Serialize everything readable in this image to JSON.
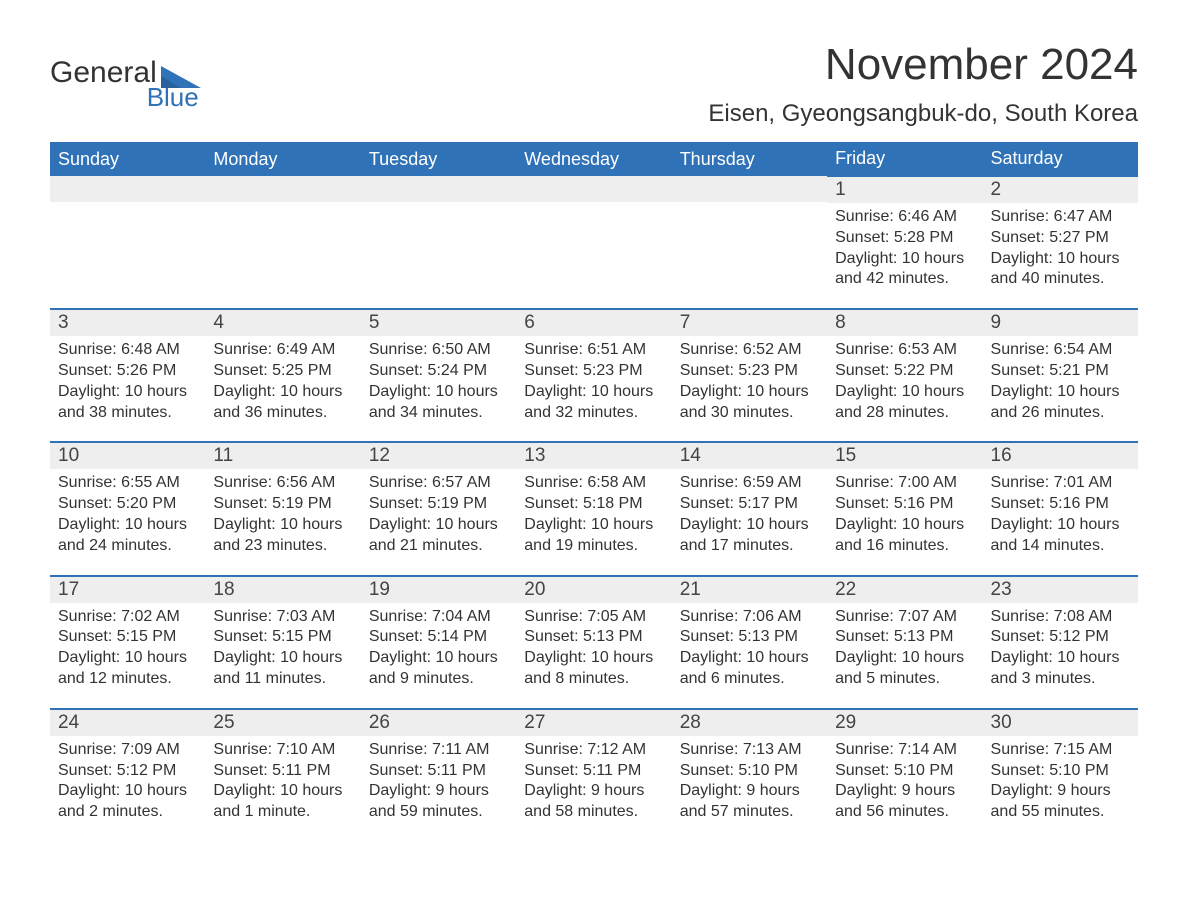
{
  "logo": {
    "word1": "General",
    "word2": "Blue"
  },
  "title": "November 2024",
  "location": "Eisen, Gyeongsangbuk-do, South Korea",
  "colors": {
    "brand_blue": "#2f72b8",
    "header_row_bg": "#eeeeee",
    "text": "#333333",
    "bg": "#ffffff"
  },
  "weekdays": [
    "Sunday",
    "Monday",
    "Tuesday",
    "Wednesday",
    "Thursday",
    "Friday",
    "Saturday"
  ],
  "weeks": [
    [
      null,
      null,
      null,
      null,
      null,
      {
        "n": "1",
        "sunrise": "Sunrise: 6:46 AM",
        "sunset": "Sunset: 5:28 PM",
        "daylight": "Daylight: 10 hours and 42 minutes."
      },
      {
        "n": "2",
        "sunrise": "Sunrise: 6:47 AM",
        "sunset": "Sunset: 5:27 PM",
        "daylight": "Daylight: 10 hours and 40 minutes."
      }
    ],
    [
      {
        "n": "3",
        "sunrise": "Sunrise: 6:48 AM",
        "sunset": "Sunset: 5:26 PM",
        "daylight": "Daylight: 10 hours and 38 minutes."
      },
      {
        "n": "4",
        "sunrise": "Sunrise: 6:49 AM",
        "sunset": "Sunset: 5:25 PM",
        "daylight": "Daylight: 10 hours and 36 minutes."
      },
      {
        "n": "5",
        "sunrise": "Sunrise: 6:50 AM",
        "sunset": "Sunset: 5:24 PM",
        "daylight": "Daylight: 10 hours and 34 minutes."
      },
      {
        "n": "6",
        "sunrise": "Sunrise: 6:51 AM",
        "sunset": "Sunset: 5:23 PM",
        "daylight": "Daylight: 10 hours and 32 minutes."
      },
      {
        "n": "7",
        "sunrise": "Sunrise: 6:52 AM",
        "sunset": "Sunset: 5:23 PM",
        "daylight": "Daylight: 10 hours and 30 minutes."
      },
      {
        "n": "8",
        "sunrise": "Sunrise: 6:53 AM",
        "sunset": "Sunset: 5:22 PM",
        "daylight": "Daylight: 10 hours and 28 minutes."
      },
      {
        "n": "9",
        "sunrise": "Sunrise: 6:54 AM",
        "sunset": "Sunset: 5:21 PM",
        "daylight": "Daylight: 10 hours and 26 minutes."
      }
    ],
    [
      {
        "n": "10",
        "sunrise": "Sunrise: 6:55 AM",
        "sunset": "Sunset: 5:20 PM",
        "daylight": "Daylight: 10 hours and 24 minutes."
      },
      {
        "n": "11",
        "sunrise": "Sunrise: 6:56 AM",
        "sunset": "Sunset: 5:19 PM",
        "daylight": "Daylight: 10 hours and 23 minutes."
      },
      {
        "n": "12",
        "sunrise": "Sunrise: 6:57 AM",
        "sunset": "Sunset: 5:19 PM",
        "daylight": "Daylight: 10 hours and 21 minutes."
      },
      {
        "n": "13",
        "sunrise": "Sunrise: 6:58 AM",
        "sunset": "Sunset: 5:18 PM",
        "daylight": "Daylight: 10 hours and 19 minutes."
      },
      {
        "n": "14",
        "sunrise": "Sunrise: 6:59 AM",
        "sunset": "Sunset: 5:17 PM",
        "daylight": "Daylight: 10 hours and 17 minutes."
      },
      {
        "n": "15",
        "sunrise": "Sunrise: 7:00 AM",
        "sunset": "Sunset: 5:16 PM",
        "daylight": "Daylight: 10 hours and 16 minutes."
      },
      {
        "n": "16",
        "sunrise": "Sunrise: 7:01 AM",
        "sunset": "Sunset: 5:16 PM",
        "daylight": "Daylight: 10 hours and 14 minutes."
      }
    ],
    [
      {
        "n": "17",
        "sunrise": "Sunrise: 7:02 AM",
        "sunset": "Sunset: 5:15 PM",
        "daylight": "Daylight: 10 hours and 12 minutes."
      },
      {
        "n": "18",
        "sunrise": "Sunrise: 7:03 AM",
        "sunset": "Sunset: 5:15 PM",
        "daylight": "Daylight: 10 hours and 11 minutes."
      },
      {
        "n": "19",
        "sunrise": "Sunrise: 7:04 AM",
        "sunset": "Sunset: 5:14 PM",
        "daylight": "Daylight: 10 hours and 9 minutes."
      },
      {
        "n": "20",
        "sunrise": "Sunrise: 7:05 AM",
        "sunset": "Sunset: 5:13 PM",
        "daylight": "Daylight: 10 hours and 8 minutes."
      },
      {
        "n": "21",
        "sunrise": "Sunrise: 7:06 AM",
        "sunset": "Sunset: 5:13 PM",
        "daylight": "Daylight: 10 hours and 6 minutes."
      },
      {
        "n": "22",
        "sunrise": "Sunrise: 7:07 AM",
        "sunset": "Sunset: 5:13 PM",
        "daylight": "Daylight: 10 hours and 5 minutes."
      },
      {
        "n": "23",
        "sunrise": "Sunrise: 7:08 AM",
        "sunset": "Sunset: 5:12 PM",
        "daylight": "Daylight: 10 hours and 3 minutes."
      }
    ],
    [
      {
        "n": "24",
        "sunrise": "Sunrise: 7:09 AM",
        "sunset": "Sunset: 5:12 PM",
        "daylight": "Daylight: 10 hours and 2 minutes."
      },
      {
        "n": "25",
        "sunrise": "Sunrise: 7:10 AM",
        "sunset": "Sunset: 5:11 PM",
        "daylight": "Daylight: 10 hours and 1 minute."
      },
      {
        "n": "26",
        "sunrise": "Sunrise: 7:11 AM",
        "sunset": "Sunset: 5:11 PM",
        "daylight": "Daylight: 9 hours and 59 minutes."
      },
      {
        "n": "27",
        "sunrise": "Sunrise: 7:12 AM",
        "sunset": "Sunset: 5:11 PM",
        "daylight": "Daylight: 9 hours and 58 minutes."
      },
      {
        "n": "28",
        "sunrise": "Sunrise: 7:13 AM",
        "sunset": "Sunset: 5:10 PM",
        "daylight": "Daylight: 9 hours and 57 minutes."
      },
      {
        "n": "29",
        "sunrise": "Sunrise: 7:14 AM",
        "sunset": "Sunset: 5:10 PM",
        "daylight": "Daylight: 9 hours and 56 minutes."
      },
      {
        "n": "30",
        "sunrise": "Sunrise: 7:15 AM",
        "sunset": "Sunset: 5:10 PM",
        "daylight": "Daylight: 9 hours and 55 minutes."
      }
    ]
  ]
}
